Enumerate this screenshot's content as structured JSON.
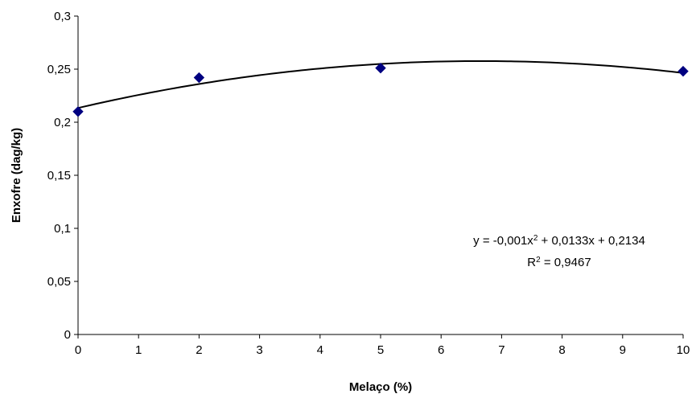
{
  "chart_data": {
    "type": "scatter",
    "xlabel": "Melaço (%)",
    "ylabel": "Enxofre (dag/kg)",
    "xlim": [
      0,
      10
    ],
    "ylim": [
      0,
      0.3
    ],
    "x_ticks": [
      "0",
      "1",
      "2",
      "3",
      "4",
      "5",
      "6",
      "7",
      "8",
      "9",
      "10"
    ],
    "y_ticks": [
      "0",
      "0,05",
      "0,1",
      "0,15",
      "0,2",
      "0,25",
      "0,3"
    ],
    "grid": false,
    "series": [
      {
        "x": [
          0,
          2,
          5,
          10
        ],
        "y": [
          0.21,
          0.242,
          0.251,
          0.248
        ],
        "marker": "diamond",
        "color": "#000080"
      }
    ],
    "trendline": {
      "type": "polynomial",
      "coefficients": {
        "a": -0.001,
        "b": 0.0133,
        "c": 0.2134
      },
      "color": "#000000"
    },
    "annotations": {
      "equation": {
        "prefix": "y = -0,001x",
        "sup": "2",
        "suffix": " + 0,0133x + 0,2134"
      },
      "r_squared": {
        "prefix": "R",
        "sup": "2",
        "suffix": " = 0,9467"
      }
    }
  }
}
